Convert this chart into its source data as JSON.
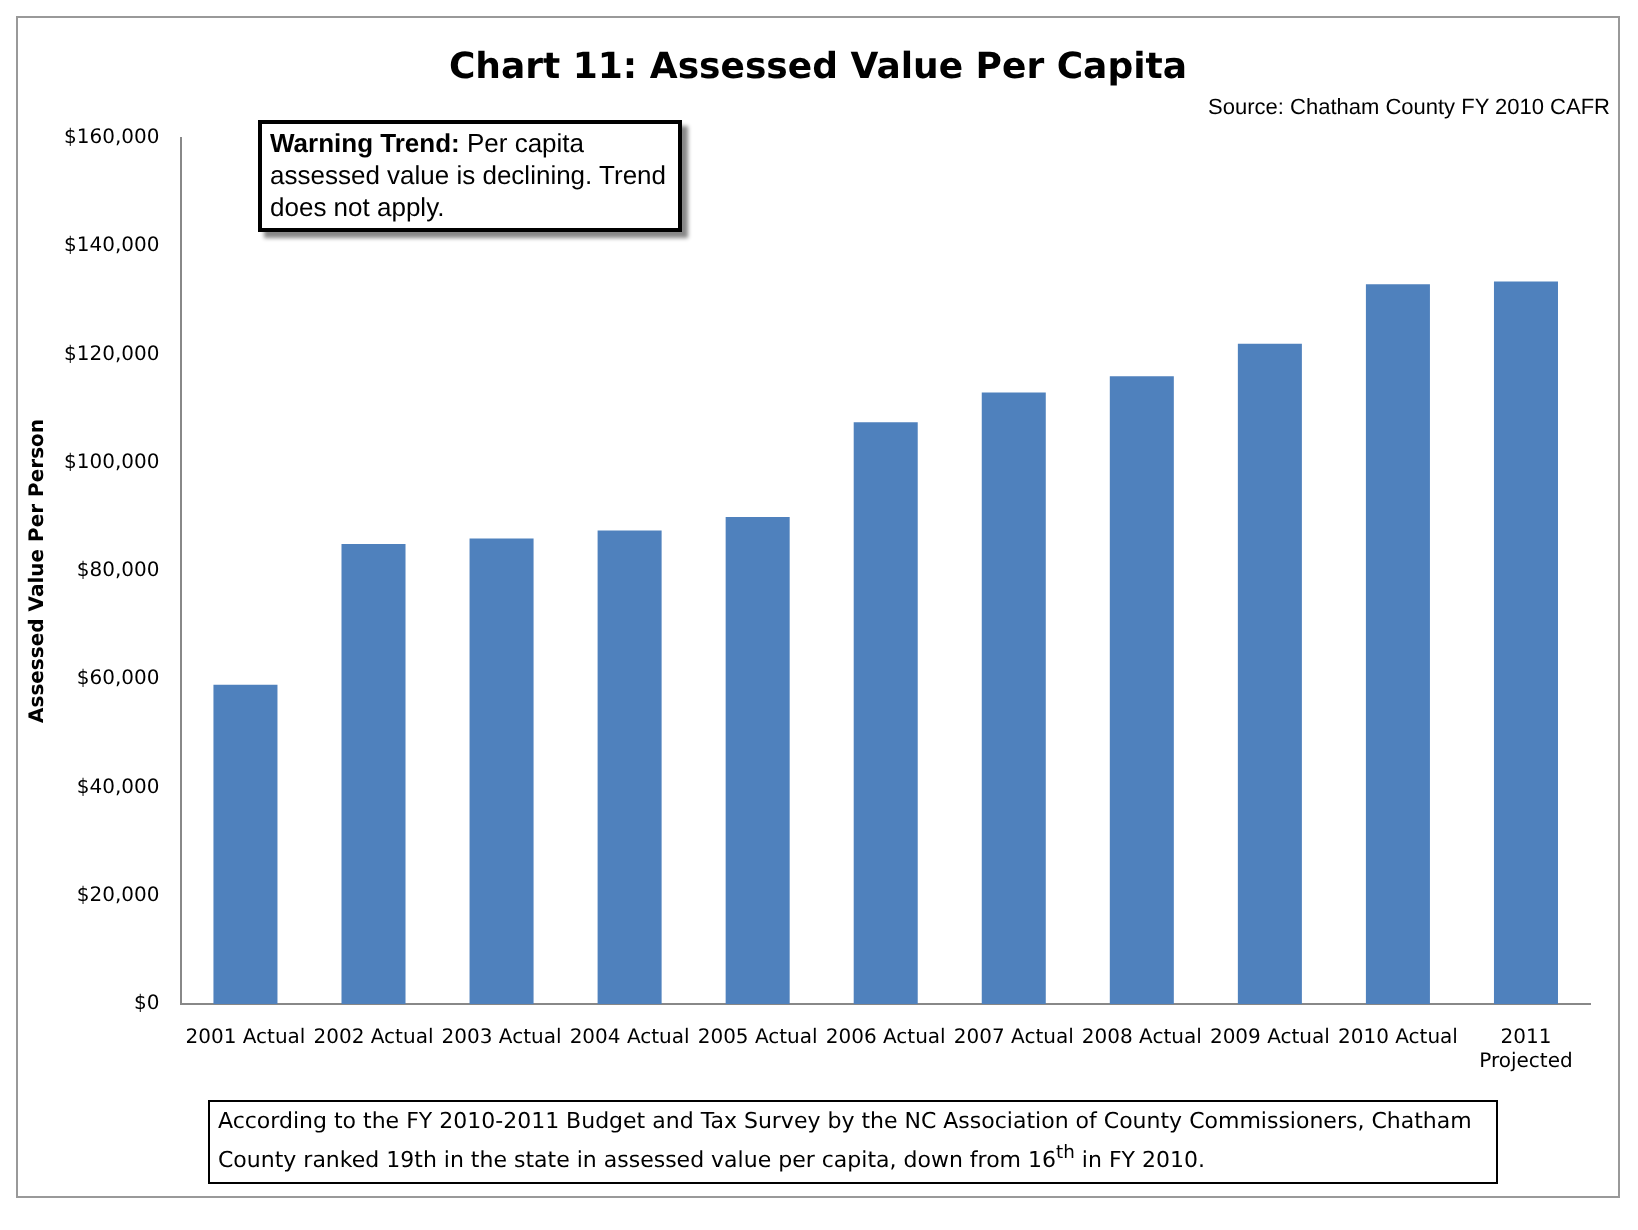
{
  "chart_data": {
    "type": "bar",
    "title": "Chart 11: Assessed Value Per Capita",
    "ylabel": "Assessed Value Per Person",
    "categories": [
      "2001 Actual",
      "2002 Actual",
      "2003 Actual",
      "2004 Actual",
      "2005 Actual",
      "2006 Actual",
      "2007 Actual",
      "2008 Actual",
      "2009 Actual",
      "2010 Actual",
      "2011 Projected"
    ],
    "values": [
      59000,
      85000,
      86000,
      87500,
      90000,
      107500,
      113000,
      116000,
      122000,
      133000,
      133500
    ],
    "color": "#4f81bd",
    "ylim": [
      0,
      160000
    ],
    "yticks": [
      {
        "value": 0,
        "label": "$0"
      },
      {
        "value": 20000,
        "label": "$20,000"
      },
      {
        "value": 40000,
        "label": "$40,000"
      },
      {
        "value": 60000,
        "label": "$60,000"
      },
      {
        "value": 80000,
        "label": "$80,000"
      },
      {
        "value": 100000,
        "label": "$100,000"
      },
      {
        "value": 120000,
        "label": "$120,000"
      },
      {
        "value": 140000,
        "label": "$140,000"
      },
      {
        "value": 160000,
        "label": "$160,000"
      }
    ],
    "grid": false,
    "legend": false,
    "annotations": [
      "Source: Chatham County FY 2010 CAFR",
      "Warning Trend: Per capita assessed value is declining. Trend does not apply.",
      "According to the FY 2010-2011 Budget and Tax Survey by the NC Association of County Commissioners, Chatham County ranked 19th in the state in assessed value per capita, down from 16$^{th}$ in FY 2010."
    ]
  }
}
